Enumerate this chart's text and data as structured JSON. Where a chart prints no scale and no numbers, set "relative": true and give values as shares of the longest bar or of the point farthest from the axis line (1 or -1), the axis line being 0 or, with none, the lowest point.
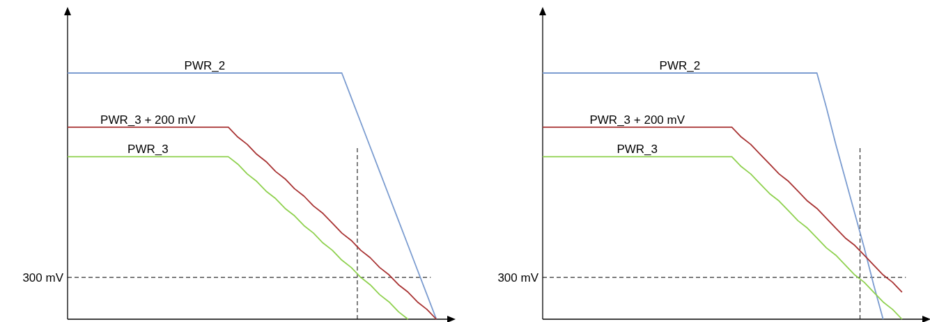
{
  "chart_data": [
    {
      "type": "line",
      "relative": true,
      "categories": [
        null,
        null,
        null,
        null,
        null,
        null,
        null,
        null,
        null,
        null,
        null,
        null,
        null,
        null,
        null,
        null,
        null,
        null,
        null,
        null,
        null,
        null,
        null,
        null,
        null,
        null,
        null,
        null,
        null,
        null,
        null,
        null,
        null,
        null,
        null,
        null,
        null,
        null,
        null,
        null,
        null
      ],
      "series": [
        {
          "name": "PWR_2",
          "color": "#7b9cd0",
          "values": [
            1,
            1,
            1,
            1,
            1,
            1,
            1,
            1,
            1,
            1,
            1,
            1,
            1,
            1,
            1,
            1,
            1,
            1,
            1,
            1,
            1,
            1,
            1,
            1,
            1,
            1,
            1,
            1,
            1,
            1,
            0.9,
            0.8,
            0.7,
            0.6,
            0.5,
            0.4,
            0.3,
            0.2,
            0.1,
            0,
            null
          ]
        },
        {
          "name": "PWR_3 + 200 mV",
          "color": "#a83232",
          "values": [
            0.78,
            0.78,
            0.78,
            0.78,
            0.78,
            0.78,
            0.78,
            0.78,
            0.78,
            0.78,
            0.78,
            0.78,
            0.78,
            0.78,
            0.78,
            0.78,
            0.78,
            0.78,
            0.74,
            0.71,
            0.67,
            0.64,
            0.6,
            0.57,
            0.53,
            0.5,
            0.46,
            0.43,
            0.39,
            0.35,
            0.32,
            0.28,
            0.25,
            0.21,
            0.18,
            0.14,
            0.11,
            0.07,
            0.04,
            0,
            null
          ]
        },
        {
          "name": "PWR_3",
          "color": "#8fd14f",
          "values": [
            0.66,
            0.66,
            0.66,
            0.66,
            0.66,
            0.66,
            0.66,
            0.66,
            0.66,
            0.66,
            0.66,
            0.66,
            0.66,
            0.66,
            0.66,
            0.66,
            0.66,
            0.66,
            0.63,
            0.59,
            0.56,
            0.52,
            0.49,
            0.45,
            0.42,
            0.38,
            0.35,
            0.31,
            0.28,
            0.24,
            0.21,
            0.17,
            0.14,
            0.1,
            0.07,
            0.03,
            0,
            null,
            null,
            null,
            null
          ]
        }
      ],
      "ref_lines": [
        {
          "axis": "y",
          "value": 0.17,
          "label": "300 mV",
          "line_style": "dashed",
          "color": "#000000"
        }
      ]
    },
    {
      "type": "line",
      "relative": true,
      "categories": [
        null,
        null,
        null,
        null,
        null,
        null,
        null,
        null,
        null,
        null,
        null,
        null,
        null,
        null,
        null,
        null,
        null,
        null,
        null,
        null,
        null,
        null,
        null,
        null,
        null,
        null,
        null,
        null,
        null,
        null,
        null,
        null,
        null,
        null,
        null,
        null,
        null,
        null,
        null,
        null,
        null
      ],
      "series": [
        {
          "name": "PWR_2",
          "color": "#7b9cd0",
          "values": [
            1,
            1,
            1,
            1,
            1,
            1,
            1,
            1,
            1,
            1,
            1,
            1,
            1,
            1,
            1,
            1,
            1,
            1,
            1,
            1,
            1,
            1,
            1,
            1,
            1,
            1,
            1,
            1,
            1,
            1,
            0.86,
            0.71,
            0.57,
            0.43,
            0.29,
            0.14,
            0,
            null,
            null,
            null,
            null
          ]
        },
        {
          "name": "PWR_3 + 200 mV",
          "color": "#a83232",
          "values": [
            0.78,
            0.78,
            0.78,
            0.78,
            0.78,
            0.78,
            0.78,
            0.78,
            0.78,
            0.78,
            0.78,
            0.78,
            0.78,
            0.78,
            0.78,
            0.78,
            0.78,
            0.78,
            0.78,
            0.78,
            0.78,
            0.74,
            0.71,
            0.67,
            0.63,
            0.59,
            0.56,
            0.52,
            0.48,
            0.45,
            0.41,
            0.37,
            0.33,
            0.3,
            0.26,
            0.22,
            0.18,
            0.15,
            0.11,
            null,
            null
          ]
        },
        {
          "name": "PWR_3",
          "color": "#8fd14f",
          "values": [
            0.66,
            0.66,
            0.66,
            0.66,
            0.66,
            0.66,
            0.66,
            0.66,
            0.66,
            0.66,
            0.66,
            0.66,
            0.66,
            0.66,
            0.66,
            0.66,
            0.66,
            0.66,
            0.66,
            0.66,
            0.66,
            0.62,
            0.59,
            0.55,
            0.51,
            0.48,
            0.44,
            0.4,
            0.37,
            0.33,
            0.29,
            0.26,
            0.22,
            0.18,
            0.15,
            0.11,
            0.07,
            0.04,
            0,
            null,
            null
          ]
        }
      ],
      "ref_lines": [
        {
          "axis": "y",
          "value": 0.17,
          "label": "300 mV",
          "line_style": "dashed",
          "color": "#000000"
        }
      ]
    }
  ]
}
